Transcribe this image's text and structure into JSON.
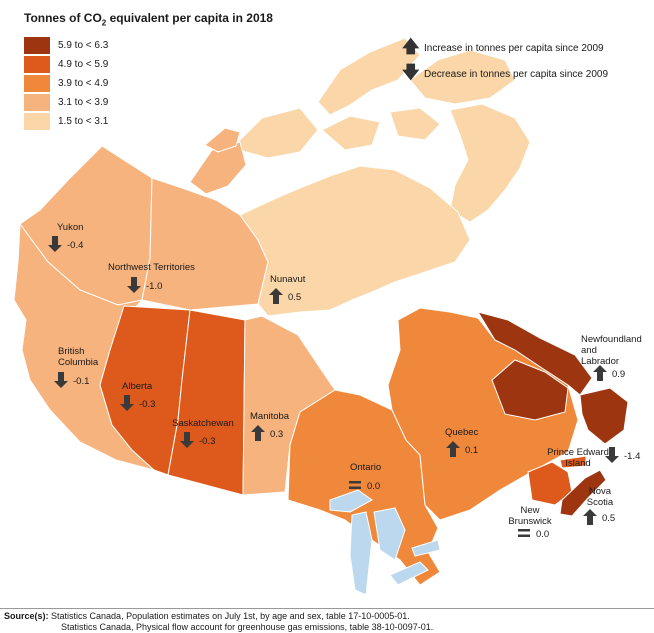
{
  "title": {
    "prefix": "Tonnes of CO",
    "subscript": "2",
    "suffix": " equivalent per capita in 2018"
  },
  "legend": [
    {
      "label": "5.9 to < 6.3",
      "color": "#9c3510"
    },
    {
      "label": "4.9 to < 5.9",
      "color": "#de5a1c"
    },
    {
      "label": "3.9 to < 4.9",
      "color": "#f0883c"
    },
    {
      "label": "3.1 to < 3.9",
      "color": "#f6b37e"
    },
    {
      "label": "1.5 to < 3.1",
      "color": "#fad6a8"
    }
  ],
  "trend_key": {
    "increase": {
      "icon": "up-arrow-icon",
      "label": "Increase in tonnes per capita since 2009"
    },
    "decrease": {
      "icon": "down-arrow-icon",
      "label": "Decrease in tonnes per capita since 2009"
    }
  },
  "regions": {
    "yukon": {
      "name": [
        "Yukon"
      ],
      "change": "-0.4",
      "trend": "down",
      "color": "#f6b37e"
    },
    "nwt": {
      "name": [
        "Northwest Territories"
      ],
      "change": "-1.0",
      "trend": "down",
      "color": "#f6b37e"
    },
    "nunavut": {
      "name": [
        "Nunavut"
      ],
      "change": "0.5",
      "trend": "up",
      "color": "#fad6a8"
    },
    "bc": {
      "name": [
        "British",
        "Columbia"
      ],
      "change": "-0.1",
      "trend": "down",
      "color": "#f6b37e"
    },
    "alberta": {
      "name": [
        "Alberta"
      ],
      "change": "-0.3",
      "trend": "down",
      "color": "#de5a1c"
    },
    "saskatchewan": {
      "name": [
        "Saskatchewan"
      ],
      "change": "-0.3",
      "trend": "down",
      "color": "#de5a1c"
    },
    "manitoba": {
      "name": [
        "Manitoba"
      ],
      "change": "0.3",
      "trend": "up",
      "color": "#f6b37e"
    },
    "ontario": {
      "name": [
        "Ontario"
      ],
      "change": "0.0",
      "trend": "equal",
      "color": "#f0883c"
    },
    "quebec": {
      "name": [
        "Quebec"
      ],
      "change": "0.1",
      "trend": "up",
      "color": "#f0883c"
    },
    "nl": {
      "name": [
        "Newfoundland",
        "and",
        "Labrador"
      ],
      "change": "0.9",
      "trend": "up",
      "color": "#9c3510"
    },
    "pei": {
      "name": [
        "Prince Edward",
        "Island"
      ],
      "change": "-1.4",
      "trend": "down",
      "color": "#de5a1c"
    },
    "nb": {
      "name": [
        "New",
        "Brunswick"
      ],
      "change": "0.0",
      "trend": "equal",
      "color": "#de5a1c"
    },
    "ns": {
      "name": [
        "Nova",
        "Scotia"
      ],
      "change": "0.5",
      "trend": "up",
      "color": "#9c3510"
    }
  },
  "water_color": "#bcd8ee",
  "source": {
    "label": "Source(s):",
    "line1": "Statistics Canada, Population estimates on July 1st, by age and sex, table 17-10-0005-01.",
    "line2": "Statistics Canada, Physical flow account for greenhouse gas emissions, table 38-10-0097-01."
  }
}
